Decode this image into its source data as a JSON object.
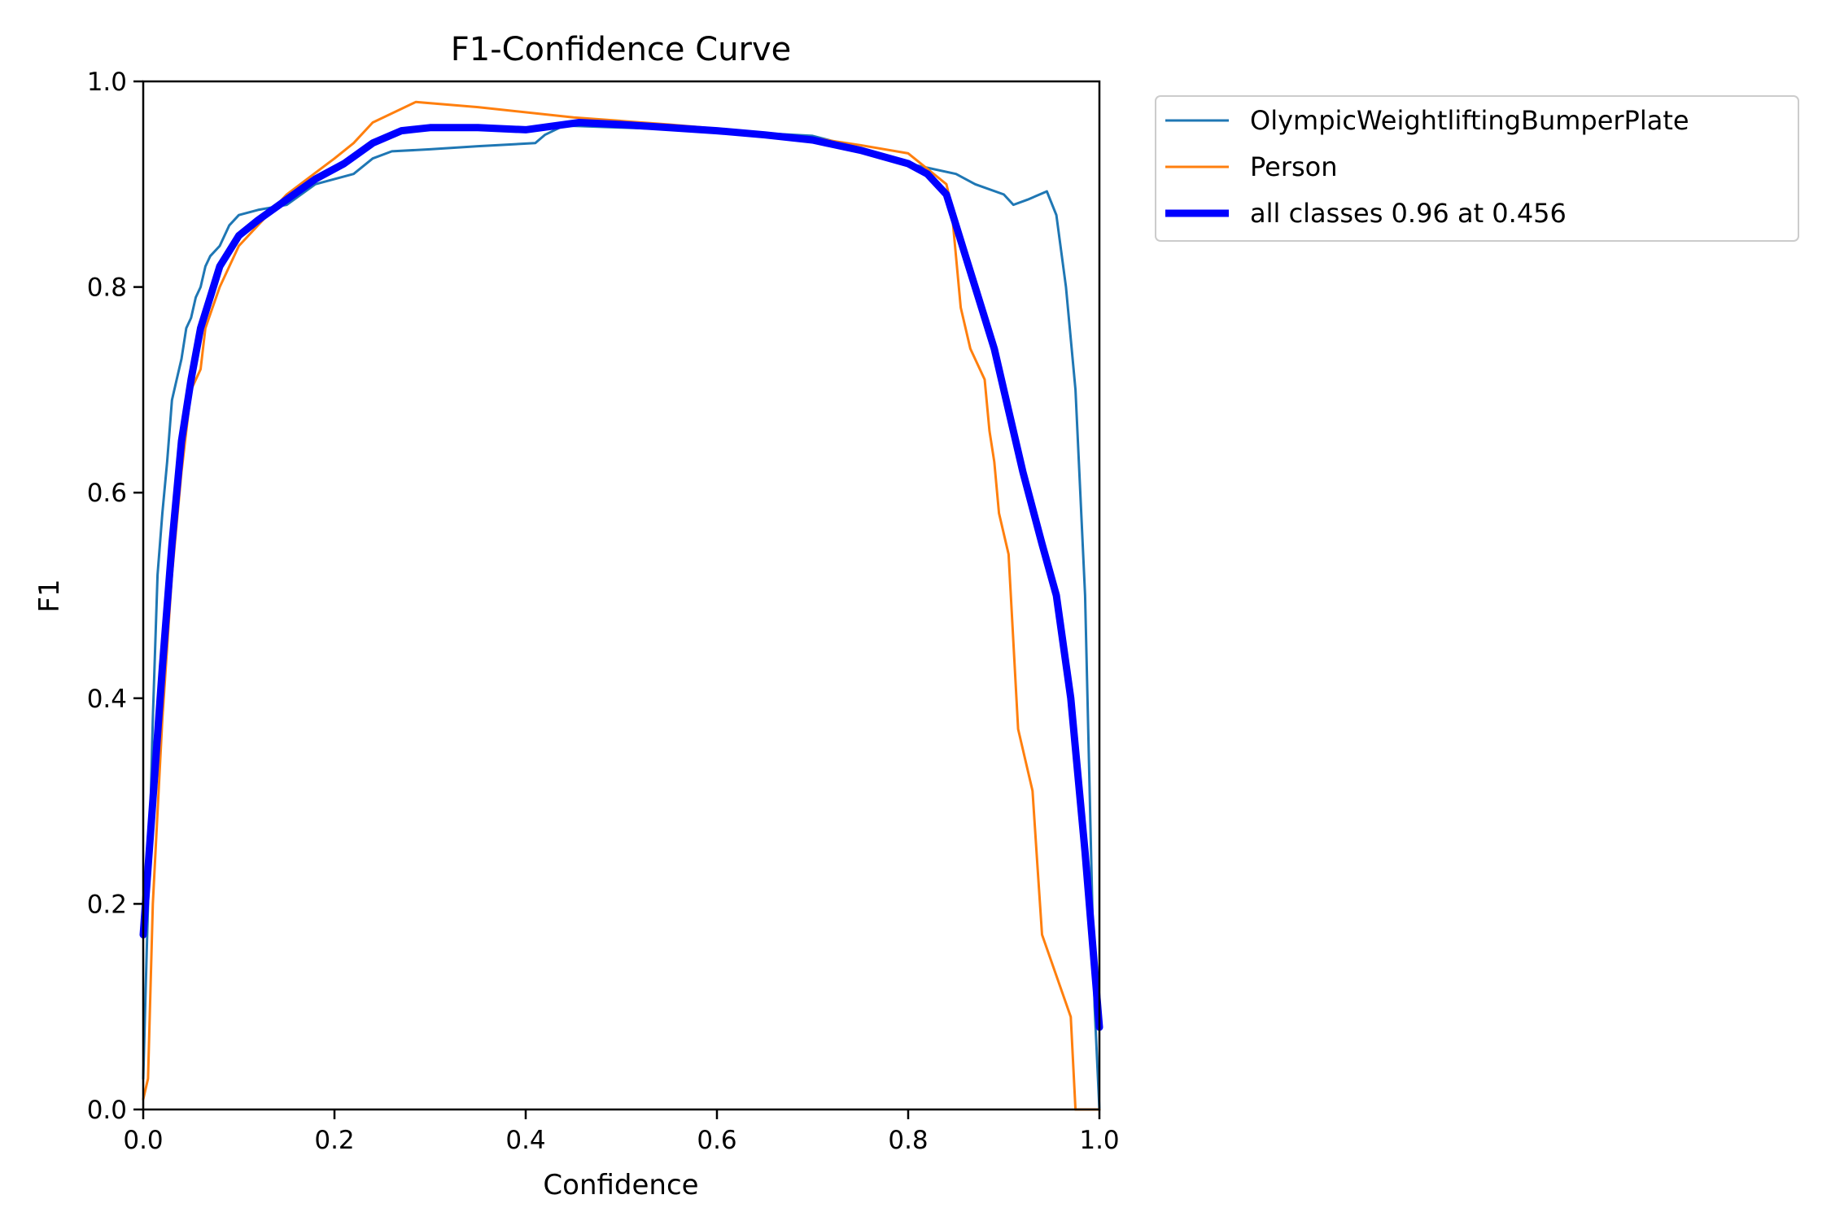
{
  "chart_data": {
    "type": "line",
    "title": "F1-Confidence Curve",
    "xlabel": "Confidence",
    "ylabel": "F1",
    "xlim": [
      0,
      1
    ],
    "ylim": [
      0,
      1
    ],
    "xticks": [
      "0.0",
      "0.2",
      "0.4",
      "0.6",
      "0.8",
      "1.0"
    ],
    "yticks": [
      "0.0",
      "0.2",
      "0.4",
      "0.6",
      "0.8",
      "1.0"
    ],
    "grid": false,
    "legend_position": "outside-top-right",
    "series": [
      {
        "name": "OlympicWeightliftingBumperPlate",
        "color": "#1f77b4",
        "width": "thin",
        "points": [
          [
            0.0,
            0.03
          ],
          [
            0.005,
            0.2
          ],
          [
            0.01,
            0.38
          ],
          [
            0.015,
            0.52
          ],
          [
            0.02,
            0.58
          ],
          [
            0.025,
            0.63
          ],
          [
            0.03,
            0.69
          ],
          [
            0.035,
            0.71
          ],
          [
            0.04,
            0.73
          ],
          [
            0.045,
            0.76
          ],
          [
            0.05,
            0.77
          ],
          [
            0.055,
            0.79
          ],
          [
            0.06,
            0.8
          ],
          [
            0.065,
            0.82
          ],
          [
            0.07,
            0.83
          ],
          [
            0.08,
            0.84
          ],
          [
            0.09,
            0.86
          ],
          [
            0.1,
            0.87
          ],
          [
            0.12,
            0.875
          ],
          [
            0.15,
            0.88
          ],
          [
            0.18,
            0.9
          ],
          [
            0.22,
            0.91
          ],
          [
            0.24,
            0.925
          ],
          [
            0.26,
            0.932
          ],
          [
            0.3,
            0.934
          ],
          [
            0.35,
            0.937
          ],
          [
            0.41,
            0.94
          ],
          [
            0.42,
            0.948
          ],
          [
            0.44,
            0.957
          ],
          [
            0.5,
            0.955
          ],
          [
            0.6,
            0.952
          ],
          [
            0.7,
            0.947
          ],
          [
            0.75,
            0.935
          ],
          [
            0.8,
            0.92
          ],
          [
            0.85,
            0.91
          ],
          [
            0.87,
            0.9
          ],
          [
            0.9,
            0.89
          ],
          [
            0.91,
            0.88
          ],
          [
            0.925,
            0.885
          ],
          [
            0.945,
            0.893
          ],
          [
            0.955,
            0.87
          ],
          [
            0.965,
            0.8
          ],
          [
            0.975,
            0.7
          ],
          [
            0.985,
            0.5
          ],
          [
            0.99,
            0.3
          ],
          [
            0.995,
            0.1
          ],
          [
            1.0,
            0.0
          ]
        ]
      },
      {
        "name": "Person",
        "color": "#ff7f0e",
        "width": "thin",
        "points": [
          [
            0.0,
            0.01
          ],
          [
            0.005,
            0.03
          ],
          [
            0.01,
            0.2
          ],
          [
            0.02,
            0.38
          ],
          [
            0.03,
            0.52
          ],
          [
            0.04,
            0.62
          ],
          [
            0.05,
            0.7
          ],
          [
            0.06,
            0.72
          ],
          [
            0.065,
            0.76
          ],
          [
            0.08,
            0.8
          ],
          [
            0.1,
            0.84
          ],
          [
            0.15,
            0.89
          ],
          [
            0.2,
            0.925
          ],
          [
            0.22,
            0.94
          ],
          [
            0.24,
            0.96
          ],
          [
            0.285,
            0.98
          ],
          [
            0.35,
            0.975
          ],
          [
            0.45,
            0.965
          ],
          [
            0.55,
            0.958
          ],
          [
            0.65,
            0.95
          ],
          [
            0.7,
            0.945
          ],
          [
            0.75,
            0.938
          ],
          [
            0.8,
            0.93
          ],
          [
            0.84,
            0.9
          ],
          [
            0.845,
            0.88
          ],
          [
            0.855,
            0.78
          ],
          [
            0.865,
            0.74
          ],
          [
            0.88,
            0.71
          ],
          [
            0.885,
            0.66
          ],
          [
            0.89,
            0.63
          ],
          [
            0.895,
            0.58
          ],
          [
            0.905,
            0.54
          ],
          [
            0.915,
            0.37
          ],
          [
            0.93,
            0.31
          ],
          [
            0.935,
            0.24
          ],
          [
            0.94,
            0.17
          ],
          [
            0.97,
            0.09
          ],
          [
            0.975,
            0.0
          ],
          [
            1.0,
            0.0
          ]
        ]
      },
      {
        "name": "all classes 0.96 at 0.456",
        "color": "#0000ff",
        "width": "thick",
        "points": [
          [
            0.0,
            0.17
          ],
          [
            0.01,
            0.3
          ],
          [
            0.02,
            0.43
          ],
          [
            0.03,
            0.55
          ],
          [
            0.04,
            0.65
          ],
          [
            0.05,
            0.71
          ],
          [
            0.06,
            0.76
          ],
          [
            0.07,
            0.79
          ],
          [
            0.08,
            0.82
          ],
          [
            0.09,
            0.835
          ],
          [
            0.1,
            0.85
          ],
          [
            0.12,
            0.865
          ],
          [
            0.15,
            0.885
          ],
          [
            0.18,
            0.905
          ],
          [
            0.21,
            0.92
          ],
          [
            0.24,
            0.94
          ],
          [
            0.27,
            0.952
          ],
          [
            0.3,
            0.955
          ],
          [
            0.35,
            0.955
          ],
          [
            0.4,
            0.953
          ],
          [
            0.456,
            0.96
          ],
          [
            0.5,
            0.958
          ],
          [
            0.55,
            0.955
          ],
          [
            0.6,
            0.952
          ],
          [
            0.65,
            0.948
          ],
          [
            0.7,
            0.943
          ],
          [
            0.75,
            0.933
          ],
          [
            0.8,
            0.92
          ],
          [
            0.82,
            0.91
          ],
          [
            0.84,
            0.89
          ],
          [
            0.85,
            0.86
          ],
          [
            0.86,
            0.83
          ],
          [
            0.87,
            0.8
          ],
          [
            0.89,
            0.74
          ],
          [
            0.9,
            0.7
          ],
          [
            0.92,
            0.62
          ],
          [
            0.94,
            0.55
          ],
          [
            0.955,
            0.5
          ],
          [
            0.97,
            0.4
          ],
          [
            0.985,
            0.25
          ],
          [
            1.0,
            0.08
          ]
        ]
      }
    ]
  }
}
